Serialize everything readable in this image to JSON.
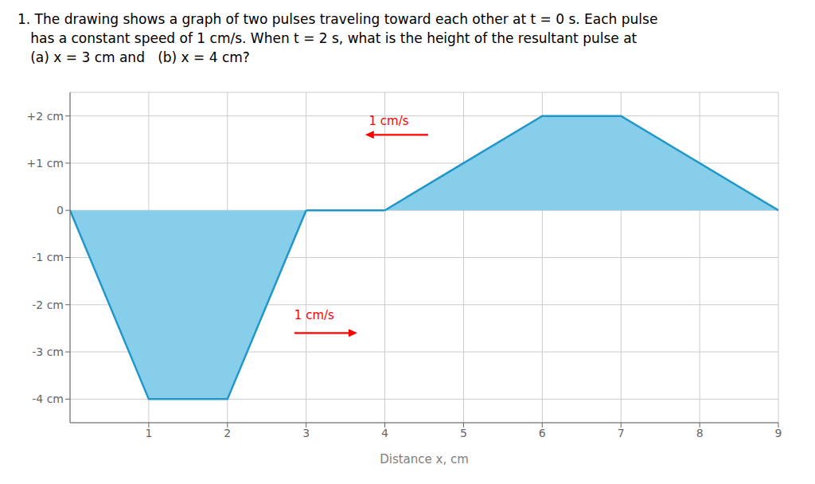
{
  "chart_data": {
    "type": "area",
    "title": [
      "1. The drawing shows a graph of two pulses traveling toward each other at t = 0 s. Each pulse",
      "   has a constant speed of 1 cm/s. When t = 2 s, what is the height of the resultant pulse at",
      "   (a) x = 3 cm and   (b) x = 4 cm?"
    ],
    "x_label": "Distance x, cm",
    "color": "#2196C8",
    "series": [
      {
        "type": "area",
        "color": "#87CEEB",
        "x": [
          0,
          1,
          2,
          3
        ],
        "values": [
          0,
          -4,
          -4,
          0
        ]
      },
      {
        "type": "area",
        "color": "#87CEEB",
        "x": [
          4,
          5,
          6,
          7,
          9
        ],
        "values": [
          0,
          1,
          2,
          2,
          0
        ]
      },
      {
        "type": "line",
        "color": "#2196C8",
        "x": [
          3,
          4
        ],
        "values": [
          0,
          0
        ]
      }
    ],
    "xlim": [
      0,
      9
    ],
    "ylim": [
      -4.5,
      2.5
    ],
    "xticks": [
      1,
      2,
      3,
      4,
      5,
      6,
      7,
      8,
      9
    ],
    "yticks": [
      {
        "value": 2,
        "label": "+2 cm"
      },
      {
        "value": 1,
        "label": "+1 cm"
      },
      0,
      {
        "value": -1,
        "label": "-1 cm"
      },
      {
        "value": -2,
        "label": "-2 cm"
      },
      {
        "value": -3,
        "label": "-3 cm"
      },
      {
        "value": -4,
        "label": "-4 cm"
      }
    ],
    "grid": true,
    "annotations": [
      {
        "text": "1 cm/s",
        "x": 4.05,
        "y": 1.75,
        "color": "red",
        "arrow_from": [
          4.55,
          1.6
        ],
        "arrow_to": [
          3.75,
          1.6
        ]
      },
      {
        "text": "1 cm/s",
        "x": 2.85,
        "y": -2.35,
        "color": "red",
        "arrow_from": [
          2.85,
          -2.6
        ],
        "arrow_to": [
          3.65,
          -2.6
        ]
      }
    ]
  }
}
